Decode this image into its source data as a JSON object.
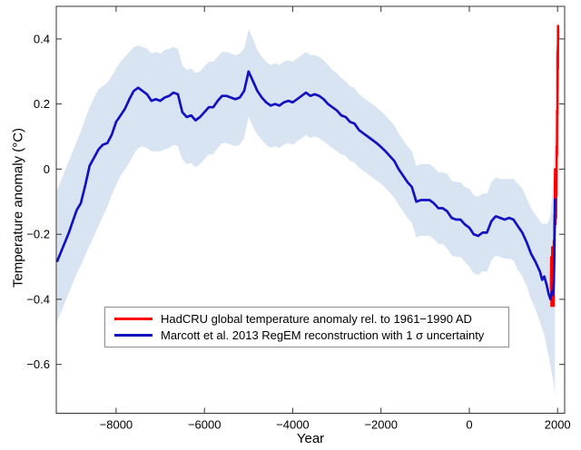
{
  "figure": {
    "xlabel": "Year",
    "ylabel": "Temperature anomaly (°C)"
  },
  "legend": {
    "entries": [
      {
        "label": "HadCRU global temperature anomaly rel. to 1961−1990 AD",
        "color": "#ff0000"
      },
      {
        "label": "Marcott et al. 2013 RegEM reconstruction with 1 σ uncertainty",
        "color": "#1212c0"
      }
    ]
  },
  "colors": {
    "axis": "#333333",
    "tick_text": "#000000",
    "band": "#d9e4f3",
    "marcott_blue": "#1212c0",
    "hadcru_red": "#ff0000",
    "background": "#ffffff"
  },
  "chart_data": {
    "type": "line",
    "title": "",
    "xlabel": "Year",
    "ylabel": "Temperature anomaly (°C)",
    "xlim": [
      -9355,
      2160
    ],
    "ylim": [
      -0.75,
      0.5
    ],
    "grid": false,
    "legend_position": "inside-bottom-center",
    "xticks": [
      -8000,
      -6000,
      -4000,
      -2000,
      0,
      2000
    ],
    "xtick_labels": [
      "−8000",
      "−6000",
      "−4000",
      "−2000",
      "0",
      "2000"
    ],
    "yticks": [
      0.4,
      0.2,
      0,
      -0.2,
      -0.4,
      -0.6
    ],
    "ytick_labels": [
      "0.4",
      "0.2",
      "0",
      "−0.2",
      "−0.4",
      "−0.6"
    ],
    "series": [
      {
        "name": "Marcott et al. 2013 RegEM reconstruction with 1 σ uncertainty",
        "type": "line-with-band",
        "color": "#1212c0",
        "band_color": "#d9e4f3",
        "x": [
          -9340,
          -9250,
          -9160,
          -9070,
          -8980,
          -8890,
          -8800,
          -8700,
          -8600,
          -8500,
          -8400,
          -8300,
          -8200,
          -8100,
          -8000,
          -7900,
          -7800,
          -7700,
          -7600,
          -7500,
          -7400,
          -7300,
          -7200,
          -7100,
          -7000,
          -6900,
          -6800,
          -6700,
          -6600,
          -6500,
          -6400,
          -6300,
          -6200,
          -6100,
          -6000,
          -5900,
          -5800,
          -5700,
          -5600,
          -5500,
          -5400,
          -5300,
          -5200,
          -5100,
          -5050,
          -5000,
          -4950,
          -4900,
          -4800,
          -4700,
          -4600,
          -4500,
          -4400,
          -4300,
          -4200,
          -4100,
          -4000,
          -3900,
          -3800,
          -3700,
          -3600,
          -3500,
          -3400,
          -3300,
          -3200,
          -3100,
          -3000,
          -2900,
          -2800,
          -2700,
          -2600,
          -2500,
          -2400,
          -2300,
          -2200,
          -2100,
          -2000,
          -1900,
          -1800,
          -1700,
          -1600,
          -1500,
          -1400,
          -1300,
          -1200,
          -1100,
          -1000,
          -900,
          -800,
          -700,
          -600,
          -500,
          -400,
          -300,
          -200,
          -100,
          0,
          100,
          200,
          300,
          400,
          500,
          600,
          700,
          800,
          900,
          1000,
          1100,
          1200,
          1300,
          1400,
          1500,
          1600,
          1650,
          1700,
          1750,
          1800,
          1840,
          1870,
          1900,
          1915,
          1925,
          1935,
          1940
        ],
        "y": [
          -0.285,
          -0.255,
          -0.225,
          -0.195,
          -0.16,
          -0.125,
          -0.105,
          -0.05,
          0.01,
          0.035,
          0.06,
          0.075,
          0.08,
          0.105,
          0.145,
          0.165,
          0.185,
          0.215,
          0.24,
          0.25,
          0.24,
          0.23,
          0.21,
          0.215,
          0.21,
          0.22,
          0.225,
          0.235,
          0.23,
          0.175,
          0.16,
          0.165,
          0.15,
          0.16,
          0.175,
          0.19,
          0.19,
          0.21,
          0.225,
          0.225,
          0.22,
          0.215,
          0.22,
          0.24,
          0.27,
          0.3,
          0.285,
          0.27,
          0.24,
          0.22,
          0.205,
          0.195,
          0.2,
          0.195,
          0.205,
          0.21,
          0.205,
          0.215,
          0.225,
          0.235,
          0.225,
          0.23,
          0.225,
          0.215,
          0.2,
          0.19,
          0.18,
          0.165,
          0.16,
          0.145,
          0.14,
          0.12,
          0.11,
          0.1,
          0.09,
          0.08,
          0.068,
          0.055,
          0.04,
          0.025,
          0.0,
          -0.02,
          -0.04,
          -0.055,
          -0.1,
          -0.095,
          -0.095,
          -0.095,
          -0.105,
          -0.12,
          -0.12,
          -0.13,
          -0.15,
          -0.155,
          -0.155,
          -0.17,
          -0.18,
          -0.2,
          -0.205,
          -0.195,
          -0.195,
          -0.16,
          -0.145,
          -0.15,
          -0.155,
          -0.15,
          -0.155,
          -0.175,
          -0.195,
          -0.225,
          -0.26,
          -0.285,
          -0.315,
          -0.34,
          -0.33,
          -0.355,
          -0.385,
          -0.4,
          -0.375,
          -0.385,
          -0.345,
          -0.27,
          -0.17,
          -0.09
        ],
        "band_upper": [
          -0.065,
          -0.035,
          -0.005,
          0.025,
          0.055,
          0.085,
          0.115,
          0.155,
          0.19,
          0.22,
          0.245,
          0.255,
          0.265,
          0.285,
          0.31,
          0.33,
          0.345,
          0.36,
          0.375,
          0.38,
          0.375,
          0.37,
          0.355,
          0.36,
          0.355,
          0.365,
          0.37,
          0.375,
          0.37,
          0.32,
          0.305,
          0.31,
          0.295,
          0.3,
          0.315,
          0.33,
          0.33,
          0.345,
          0.36,
          0.36,
          0.355,
          0.35,
          0.355,
          0.37,
          0.4,
          0.43,
          0.415,
          0.4,
          0.365,
          0.345,
          0.33,
          0.32,
          0.325,
          0.32,
          0.33,
          0.335,
          0.33,
          0.34,
          0.35,
          0.36,
          0.35,
          0.35,
          0.345,
          0.335,
          0.32,
          0.305,
          0.295,
          0.28,
          0.27,
          0.255,
          0.25,
          0.23,
          0.22,
          0.21,
          0.2,
          0.19,
          0.178,
          0.165,
          0.15,
          0.135,
          0.11,
          0.09,
          0.07,
          0.055,
          0.01,
          0.015,
          0.015,
          0.015,
          0.005,
          -0.01,
          -0.01,
          -0.015,
          -0.035,
          -0.04,
          -0.04,
          -0.055,
          -0.06,
          -0.08,
          -0.085,
          -0.075,
          -0.075,
          -0.04,
          -0.025,
          -0.03,
          -0.03,
          -0.03,
          -0.03,
          -0.045,
          -0.06,
          -0.09,
          -0.12,
          -0.14,
          -0.16,
          -0.17,
          -0.165,
          -0.17,
          -0.16,
          -0.14,
          -0.09,
          -0.02,
          0.04,
          0.11,
          0.19,
          0.245
        ],
        "band_lower": [
          -0.47,
          -0.44,
          -0.41,
          -0.38,
          -0.35,
          -0.32,
          -0.295,
          -0.265,
          -0.235,
          -0.205,
          -0.175,
          -0.145,
          -0.115,
          -0.08,
          -0.05,
          -0.02,
          0.0,
          0.02,
          0.045,
          0.065,
          0.07,
          0.065,
          0.055,
          0.055,
          0.055,
          0.06,
          0.065,
          0.075,
          0.07,
          0.03,
          0.015,
          0.02,
          0.005,
          0.015,
          0.03,
          0.045,
          0.045,
          0.065,
          0.08,
          0.08,
          0.075,
          0.07,
          0.075,
          0.095,
          0.13,
          0.16,
          0.145,
          0.13,
          0.105,
          0.09,
          0.075,
          0.065,
          0.07,
          0.065,
          0.075,
          0.08,
          0.075,
          0.085,
          0.095,
          0.105,
          0.095,
          0.1,
          0.095,
          0.085,
          0.075,
          0.065,
          0.055,
          0.045,
          0.04,
          0.025,
          0.02,
          0.005,
          -0.005,
          -0.015,
          -0.025,
          -0.035,
          -0.045,
          -0.058,
          -0.072,
          -0.088,
          -0.11,
          -0.13,
          -0.15,
          -0.165,
          -0.21,
          -0.205,
          -0.205,
          -0.205,
          -0.215,
          -0.23,
          -0.23,
          -0.245,
          -0.265,
          -0.27,
          -0.27,
          -0.285,
          -0.3,
          -0.32,
          -0.325,
          -0.315,
          -0.315,
          -0.28,
          -0.265,
          -0.27,
          -0.275,
          -0.275,
          -0.28,
          -0.31,
          -0.33,
          -0.36,
          -0.4,
          -0.43,
          -0.47,
          -0.49,
          -0.51,
          -0.545,
          -0.575,
          -0.605,
          -0.63,
          -0.65,
          -0.665,
          -0.675,
          -0.69,
          -0.7
        ]
      },
      {
        "name": "HadCRU global temperature anomaly rel. to 1961−1990 AD",
        "type": "line",
        "color": "#ff0000",
        "x": [
          1850,
          1855,
          1860,
          1862,
          1866,
          1870,
          1875,
          1878,
          1880,
          1885,
          1890,
          1895,
          1900,
          1905,
          1910,
          1915,
          1920,
          1925,
          1930,
          1935,
          1940,
          1944,
          1950,
          1955,
          1960,
          1965,
          1970,
          1975,
          1980,
          1985,
          1990,
          1995,
          1998,
          2000,
          2003,
          2005,
          2008,
          2010,
          2012,
          2013
        ],
        "y": [
          -0.37,
          -0.27,
          -0.36,
          -0.42,
          -0.3,
          -0.28,
          -0.38,
          -0.24,
          -0.3,
          -0.36,
          -0.38,
          -0.3,
          -0.25,
          -0.34,
          -0.42,
          -0.22,
          -0.27,
          -0.22,
          -0.14,
          -0.18,
          -0.05,
          0.0,
          -0.17,
          -0.13,
          -0.05,
          -0.15,
          -0.03,
          -0.08,
          0.07,
          0.04,
          0.18,
          0.17,
          0.36,
          0.24,
          0.36,
          0.38,
          0.31,
          0.44,
          0.4,
          0.43
        ]
      }
    ]
  }
}
